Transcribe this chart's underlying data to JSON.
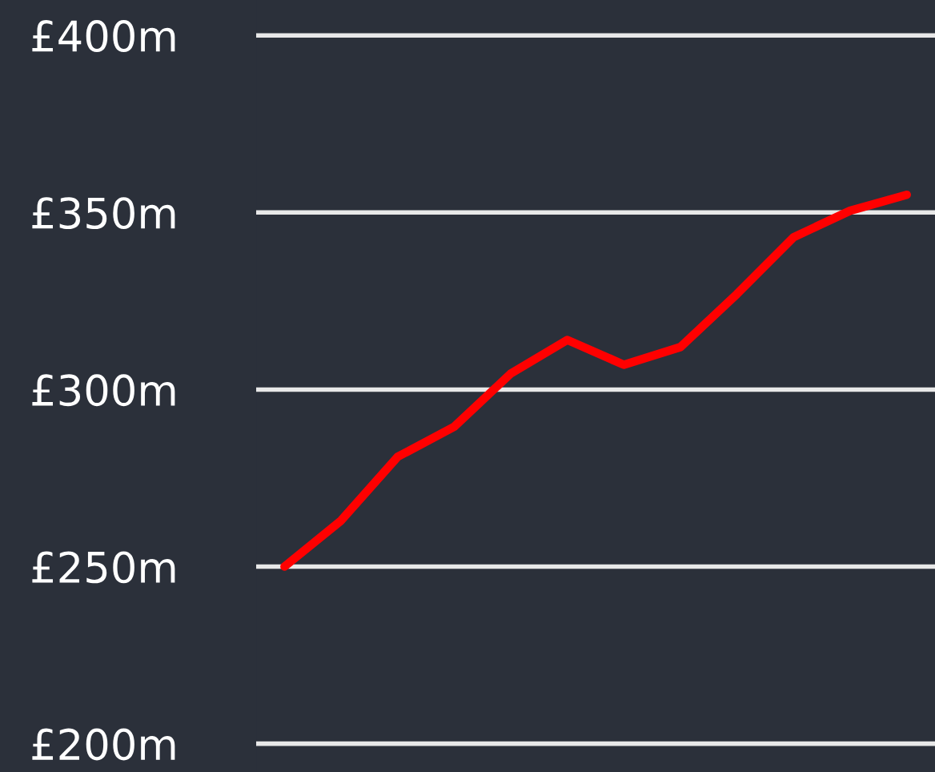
{
  "chart_data": {
    "type": "line",
    "categories": [
      null,
      null,
      null,
      null,
      null,
      null,
      null,
      null,
      null,
      null,
      null,
      null
    ],
    "series": [
      {
        "color": "#ff0000",
        "values": [
          250,
          263,
          281,
          289.5,
          304.5,
          314,
          307,
          312,
          327,
          343,
          350.5,
          355
        ]
      }
    ],
    "ylim": [
      192,
      410
    ],
    "yticks": [
      {
        "value": 200,
        "label": "£200m"
      },
      {
        "value": 250,
        "label": "£250m"
      },
      {
        "value": 300,
        "label": "£300m"
      },
      {
        "value": 350,
        "label": "£350m"
      },
      {
        "value": 400,
        "label": "£400m"
      }
    ],
    "grid": "y",
    "legend": false,
    "tick_labels": "y",
    "marker": "none",
    "line_style": "solid"
  }
}
